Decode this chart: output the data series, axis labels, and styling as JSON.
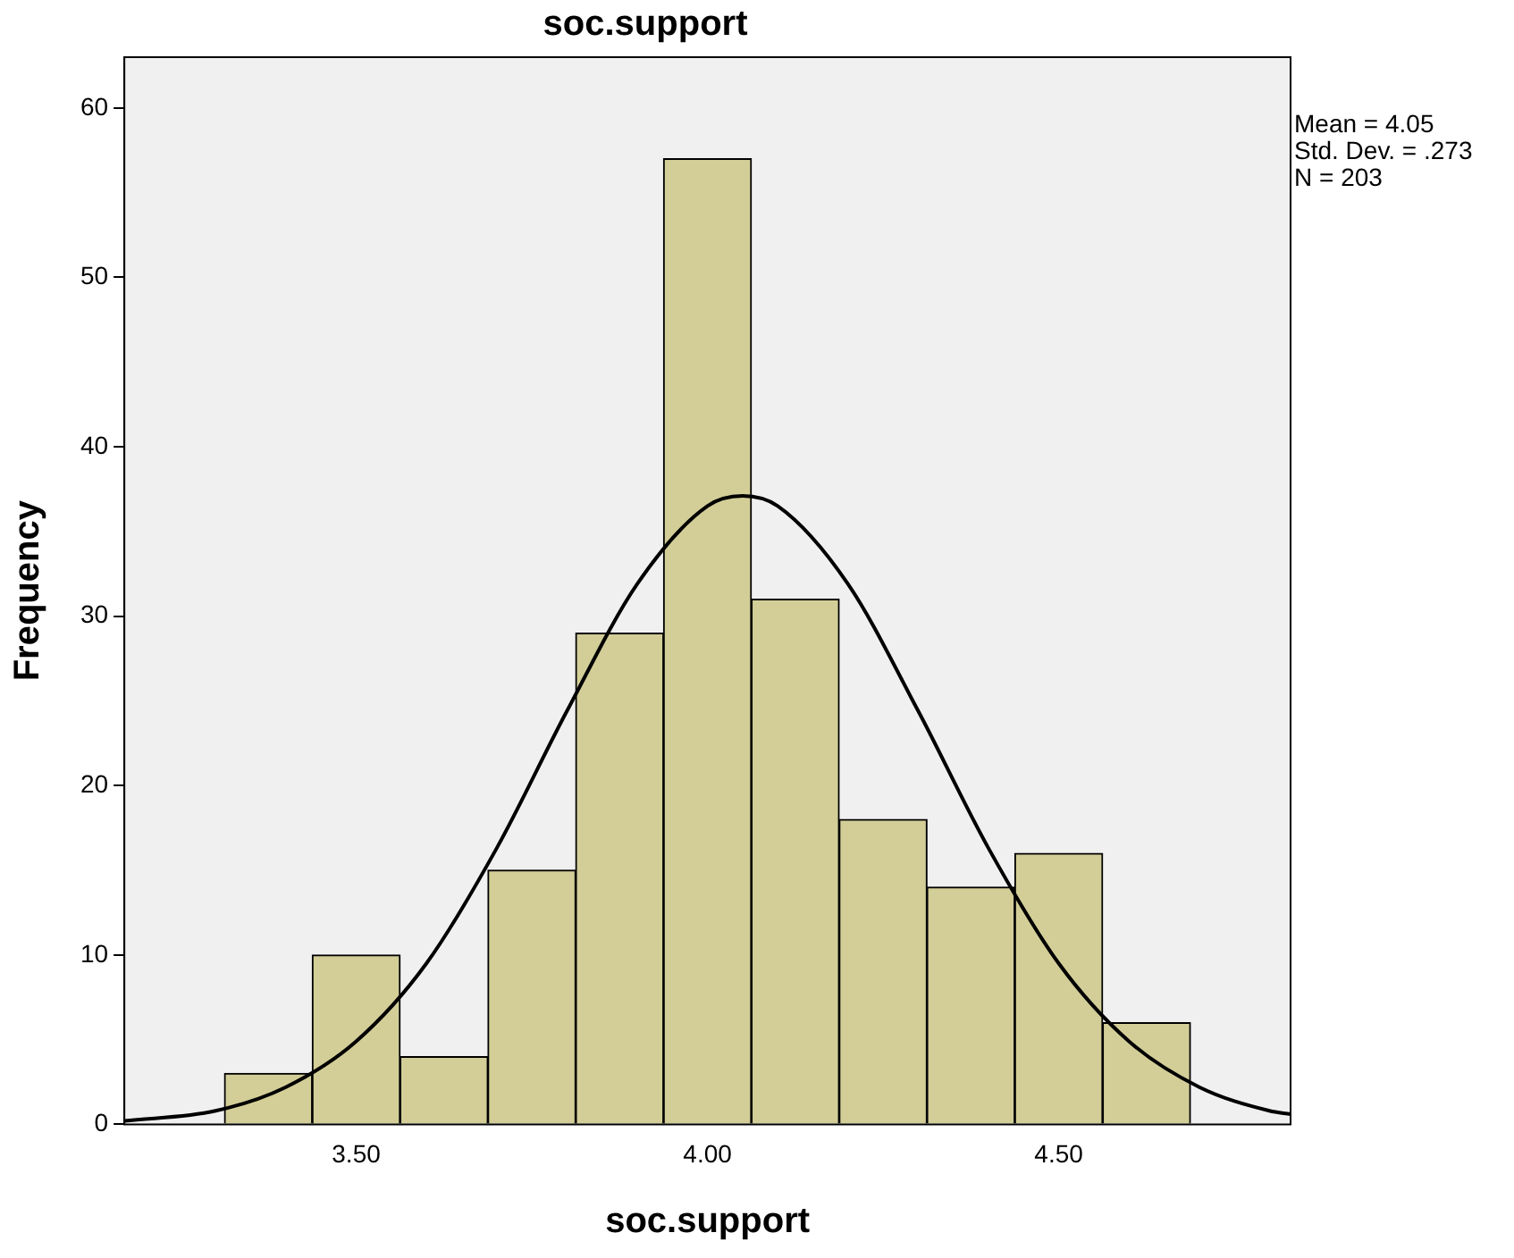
{
  "chart_data": {
    "type": "histogram",
    "title": "soc.support",
    "xlabel": "soc.support",
    "ylabel": "Frequency",
    "bins": [
      3.3125,
      3.4375,
      3.5625,
      3.6875,
      3.8125,
      3.9375,
      4.0625,
      4.1875,
      4.3125,
      4.4375,
      4.5625,
      4.6875
    ],
    "values": [
      3,
      10,
      4,
      15,
      29,
      57,
      31,
      18,
      14,
      16,
      6
    ],
    "color": "#d3ce97",
    "series": [
      {
        "type": "line",
        "color": "#000000",
        "x": [
          3.17,
          3.3,
          3.4,
          3.5,
          3.6,
          3.7,
          3.8,
          3.9,
          4.0,
          4.05,
          4.1,
          4.2,
          4.3,
          4.4,
          4.5,
          4.6,
          4.7,
          4.8,
          4.83
        ],
        "values": [
          0.2,
          0.8,
          2.2,
          4.9,
          9.5,
          16.3,
          24.4,
          31.9,
          36.5,
          37.1,
          36.5,
          31.9,
          24.4,
          16.3,
          9.5,
          4.9,
          2.2,
          0.8,
          0.6
        ]
      }
    ],
    "xlim": [
      3.17,
      4.83
    ],
    "ylim": [
      0,
      63
    ],
    "xticks": [
      {
        "value": 3.5,
        "label": "3.50"
      },
      {
        "value": 4.0,
        "label": "4.00"
      },
      {
        "value": 4.5,
        "label": "4.50"
      }
    ],
    "yticks": [
      0,
      10,
      20,
      30,
      40,
      50,
      60
    ],
    "annotations": [
      "Mean = 4.05",
      "Std. Dev. = .273",
      "N = 203"
    ],
    "grid": false,
    "legend": false,
    "marker": "none",
    "line_style": "solid"
  }
}
